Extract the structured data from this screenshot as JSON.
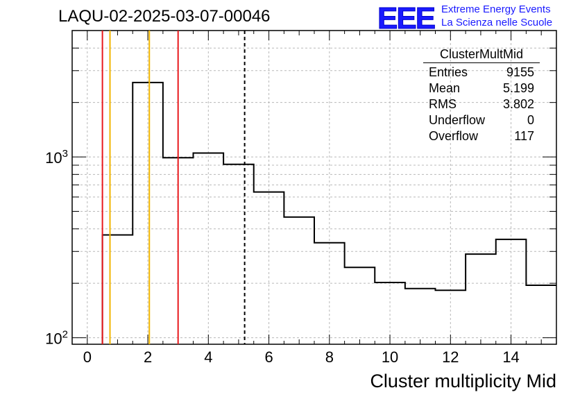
{
  "header": {
    "title": "LAQU-02-2025-03-07-00046"
  },
  "logo": {
    "mark": "EEE",
    "line1": "Extreme Energy Events",
    "line2": "La Scienza nelle Scuole",
    "color": "#1a1aff"
  },
  "stats_box": {
    "title": "ClusterMultMid",
    "rows": [
      {
        "label": "Entries",
        "value": "9155"
      },
      {
        "label": "Mean",
        "value": "5.199"
      },
      {
        "label": "RMS",
        "value": "3.802"
      },
      {
        "label": "Underflow",
        "value": "0"
      },
      {
        "label": "Overflow",
        "value": "117"
      }
    ]
  },
  "chart_data": {
    "type": "histogram",
    "title": "LAQU-02-2025-03-07-00046",
    "xlabel": "Cluster multiplicity Mid",
    "ylabel": "",
    "y_scale": "log",
    "grid": true,
    "xlim": [
      -0.5,
      15.5
    ],
    "ylim": [
      92,
      5000
    ],
    "x_ticks": [
      0,
      2,
      4,
      6,
      8,
      10,
      12,
      14
    ],
    "y_tick_labels": [
      "10^2",
      "10^3"
    ],
    "bin_edges": [
      0.5,
      1.5,
      2.5,
      3.5,
      4.5,
      5.5,
      6.5,
      7.5,
      8.5,
      9.5,
      10.5,
      11.5,
      12.5,
      13.5,
      14.5,
      15.5
    ],
    "counts": [
      370,
      2580,
      990,
      1050,
      910,
      640,
      465,
      335,
      245,
      202,
      187,
      183,
      290,
      350,
      195
    ],
    "line_color": "#000000",
    "markers": [
      {
        "x": 0.5,
        "color": "#e8191c",
        "style": "solid"
      },
      {
        "x": 3.0,
        "color": "#e8191c",
        "style": "solid"
      },
      {
        "x": 0.75,
        "color": "#f2b600",
        "style": "solid"
      },
      {
        "x": 2.05,
        "color": "#f2b600",
        "style": "solid"
      },
      {
        "x": 5.199,
        "color": "#000000",
        "style": "dashed"
      }
    ]
  }
}
